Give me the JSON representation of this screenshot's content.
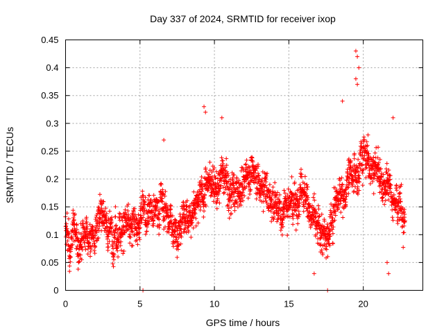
{
  "chart_data": {
    "type": "scatter",
    "title": "Day 337 of 2024, SRMTID for receiver ixop",
    "xlabel": "GPS time / hours",
    "ylabel": "SRMTID / TECUs",
    "xlim": [
      0,
      24
    ],
    "ylim": [
      0,
      0.45
    ],
    "xticks": [
      "0",
      "5",
      "10",
      "15",
      "20"
    ],
    "yticks": [
      "0",
      "0.05",
      "0.1",
      "0.15",
      "0.2",
      "0.25",
      "0.3",
      "0.35",
      "0.4",
      "0.45"
    ],
    "grid": true,
    "marker": "+",
    "series_color": "#ff0000",
    "series": [
      {
        "name": "SRMTID",
        "trend_x": [
          0,
          0.3,
          0.6,
          1,
          1.5,
          2,
          2.5,
          3,
          3.5,
          4,
          4.5,
          5,
          5.5,
          6,
          6.5,
          7,
          7.5,
          8,
          8.5,
          9,
          9.5,
          10,
          10.5,
          11,
          11.5,
          12,
          12.5,
          13,
          13.5,
          14,
          14.5,
          15,
          15.5,
          16,
          16.5,
          17,
          17.5,
          18,
          18.5,
          19,
          19.5,
          20,
          20.5,
          21,
          21.5,
          22,
          22.5,
          22.8
        ],
        "trend_y": [
          0.11,
          0.09,
          0.1,
          0.08,
          0.09,
          0.12,
          0.14,
          0.11,
          0.1,
          0.12,
          0.11,
          0.13,
          0.16,
          0.14,
          0.16,
          0.13,
          0.12,
          0.14,
          0.15,
          0.17,
          0.19,
          0.18,
          0.2,
          0.17,
          0.18,
          0.2,
          0.22,
          0.19,
          0.18,
          0.15,
          0.13,
          0.16,
          0.17,
          0.18,
          0.13,
          0.11,
          0.09,
          0.15,
          0.17,
          0.19,
          0.21,
          0.25,
          0.22,
          0.21,
          0.2,
          0.16,
          0.14,
          0.12
        ],
        "spread": 0.05,
        "count": 2400,
        "outliers": [
          {
            "x": 5.2,
            "y": 0.0
          },
          {
            "x": 17.6,
            "y": 0.0
          },
          {
            "x": 19.5,
            "y": 0.43
          },
          {
            "x": 19.6,
            "y": 0.42
          },
          {
            "x": 19.7,
            "y": 0.4
          },
          {
            "x": 19.5,
            "y": 0.38
          },
          {
            "x": 19.6,
            "y": 0.37
          },
          {
            "x": 18.6,
            "y": 0.34
          },
          {
            "x": 9.3,
            "y": 0.33
          },
          {
            "x": 9.4,
            "y": 0.32
          },
          {
            "x": 10.5,
            "y": 0.31
          },
          {
            "x": 22.0,
            "y": 0.31
          },
          {
            "x": 6.6,
            "y": 0.27
          },
          {
            "x": 21.6,
            "y": 0.05
          },
          {
            "x": 21.7,
            "y": 0.03
          },
          {
            "x": 16.7,
            "y": 0.03
          }
        ]
      }
    ]
  }
}
